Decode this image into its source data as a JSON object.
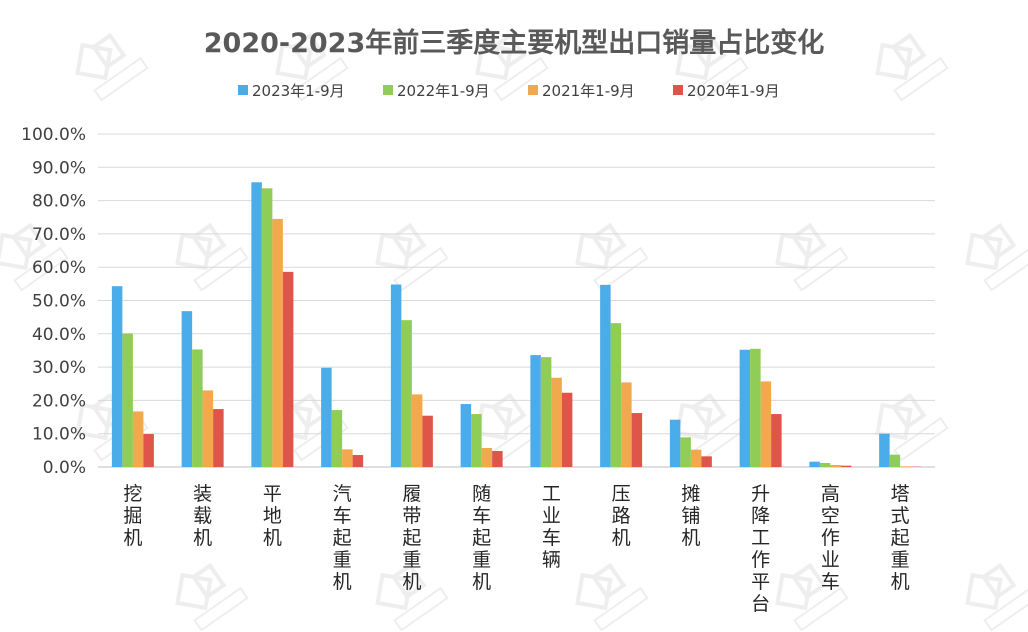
{
  "chart_data": {
    "type": "bar",
    "title": "2020-2023年前三季度主要机型出口销量占比变化",
    "xlabel": "",
    "ylabel": "",
    "ylim": [
      0,
      100
    ],
    "ytick_labels": [
      "0.0%",
      "10.0%",
      "20.0%",
      "30.0%",
      "40.0%",
      "50.0%",
      "60.0%",
      "70.0%",
      "80.0%",
      "90.0%",
      "100.0%"
    ],
    "grid": true,
    "legend_position": "top-center",
    "categories": [
      "挖掘机",
      "装载机",
      "平地机",
      "汽车起重机",
      "履带起重机",
      "随车起重机",
      "工业车辆",
      "压路机",
      "摊铺机",
      "升降工作平台",
      "高空作业车",
      "塔式起重机"
    ],
    "series": [
      {
        "name": "2023年1-9月",
        "color": "#4bacea",
        "values": [
          54.3,
          46.8,
          85.5,
          29.8,
          54.8,
          18.9,
          33.6,
          54.7,
          14.2,
          35.2,
          1.6,
          10.0
        ]
      },
      {
        "name": "2022年1-9月",
        "color": "#8fcd57",
        "values": [
          40.1,
          35.3,
          83.7,
          17.1,
          44.1,
          15.9,
          33.0,
          43.2,
          8.9,
          35.5,
          1.2,
          3.7
        ]
      },
      {
        "name": "2021年1-9月",
        "color": "#f2a84c",
        "values": [
          16.7,
          23.0,
          74.5,
          5.3,
          21.8,
          5.7,
          26.8,
          25.4,
          5.2,
          25.7,
          0.6,
          0.2
        ]
      },
      {
        "name": "2020年1-9月",
        "color": "#e0554a",
        "values": [
          9.9,
          17.4,
          58.6,
          3.6,
          15.4,
          4.8,
          22.3,
          16.2,
          3.2,
          15.9,
          0.4,
          0.1
        ]
      }
    ]
  },
  "colors": {
    "grid": "#d9d9d9",
    "axis": "#bfbfbf",
    "title": "#595959",
    "watermark": "#d0d0d0"
  }
}
